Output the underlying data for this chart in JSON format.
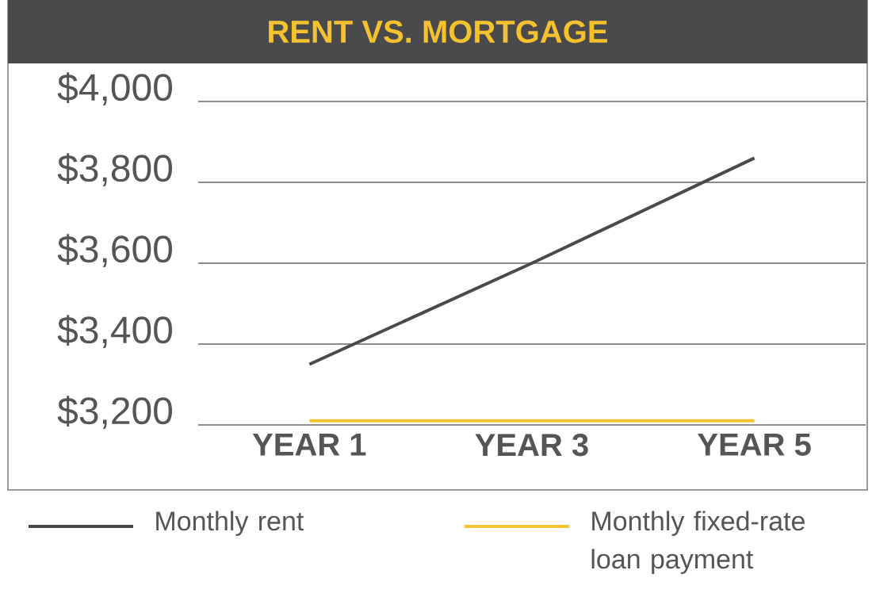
{
  "chart_data": {
    "type": "line",
    "title": "RENT VS. MORTGAGE",
    "categories": [
      "YEAR 1",
      "YEAR 3",
      "YEAR 5"
    ],
    "ylim": [
      3200,
      4000
    ],
    "yticks": [
      {
        "value": 3200,
        "label": "$3,200"
      },
      {
        "value": 3400,
        "label": "$3,400"
      },
      {
        "value": 3600,
        "label": "$3,600"
      },
      {
        "value": 3800,
        "label": "$3,800"
      },
      {
        "value": 4000,
        "label": "$4,000"
      }
    ],
    "grid": "y",
    "legend": "bottom",
    "series": [
      {
        "name": "Monthly rent",
        "color": "#4a4a4a",
        "values": [
          3350,
          3600,
          3860
        ]
      },
      {
        "name": "Monthly fixed-rate loan payment",
        "color": "#f4c430",
        "values": [
          3210,
          3210,
          3210
        ]
      }
    ]
  }
}
